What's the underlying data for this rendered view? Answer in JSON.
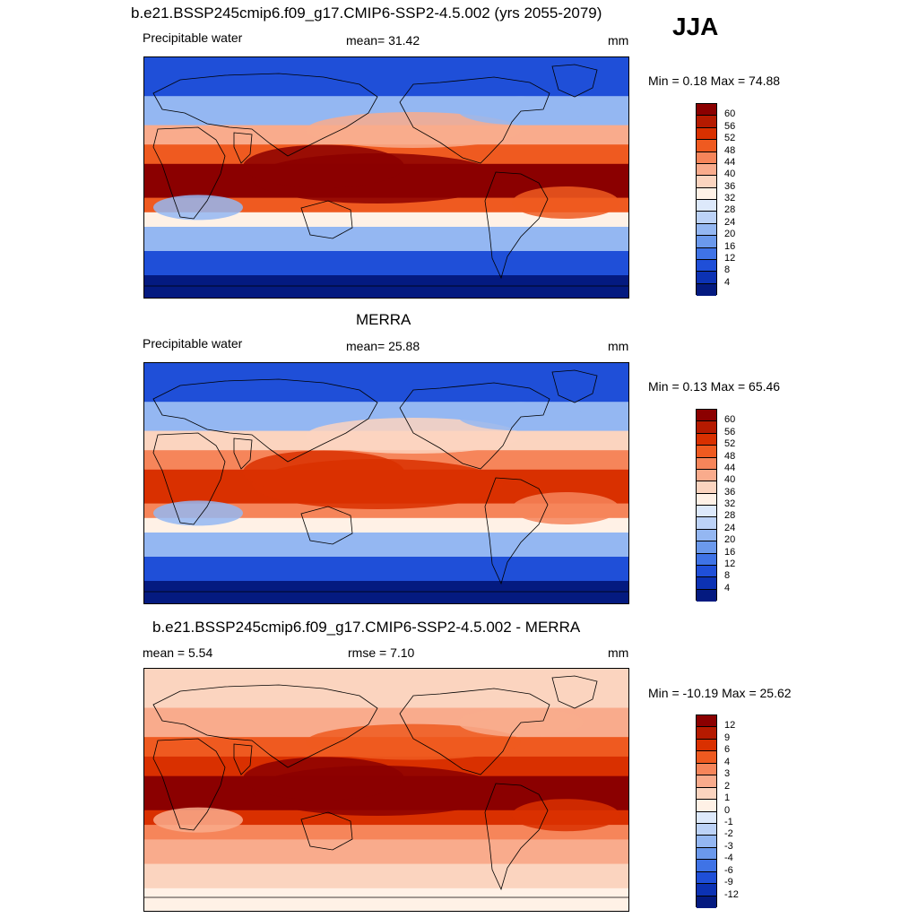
{
  "season": "JJA",
  "panels": [
    {
      "title": "b.e21.BSSP245cmip6.f09_g17.CMIP6-SSP2-4.5.002 (yrs 2055-2079)",
      "left_label": "Precipitable water",
      "center_label": "mean=  31.42",
      "units": "mm",
      "minmax": "Min =   0.18 Max =  74.88",
      "colorbar": {
        "labels": [
          "60",
          "56",
          "52",
          "48",
          "44",
          "40",
          "36",
          "32",
          "28",
          "24",
          "20",
          "16",
          "12",
          "8",
          "4"
        ],
        "colors": [
          "#8b0000",
          "#b51a00",
          "#d93000",
          "#ef5a20",
          "#f6855a",
          "#f9ab8c",
          "#fbd4bf",
          "#fff1e6",
          "#dde9fb",
          "#bcd2f7",
          "#94b7f2",
          "#6b99ec",
          "#3f73e6",
          "#1f4fd8",
          "#0c32b4",
          "#041a80"
        ]
      },
      "colors": {
        "high": "#8b0000",
        "mid": "#ef5a20",
        "low": "#f9ab8c",
        "neutral": "#fff1e6",
        "cool": "#94b7f2",
        "cold": "#1f4fd8",
        "polar": "#041a80"
      }
    },
    {
      "title": "MERRA",
      "left_label": "Precipitable water",
      "center_label": "mean=  25.88",
      "units": "mm",
      "minmax": "Min =   0.13 Max =  65.46",
      "colorbar": {
        "labels": [
          "60",
          "56",
          "52",
          "48",
          "44",
          "40",
          "36",
          "32",
          "28",
          "24",
          "20",
          "16",
          "12",
          "8",
          "4"
        ],
        "colors": [
          "#8b0000",
          "#b51a00",
          "#d93000",
          "#ef5a20",
          "#f6855a",
          "#f9ab8c",
          "#fbd4bf",
          "#fff1e6",
          "#dde9fb",
          "#bcd2f7",
          "#94b7f2",
          "#6b99ec",
          "#3f73e6",
          "#1f4fd8",
          "#0c32b4",
          "#041a80"
        ]
      },
      "colors": {
        "high": "#d93000",
        "mid": "#f6855a",
        "low": "#fbd4bf",
        "neutral": "#fff1e6",
        "cool": "#94b7f2",
        "cold": "#1f4fd8",
        "polar": "#041a80"
      }
    },
    {
      "title": "b.e21.BSSP245cmip6.f09_g17.CMIP6-SSP2-4.5.002 - MERRA",
      "left_label": "mean =   5.54",
      "center_label": "rmse =   7.10",
      "units": "mm",
      "minmax": "Min = -10.19 Max =  25.62",
      "colorbar": {
        "labels": [
          "12",
          "9",
          "6",
          "4",
          "3",
          "2",
          "1",
          "0",
          "-1",
          "-2",
          "-3",
          "-4",
          "-6",
          "-9",
          "-12"
        ],
        "colors": [
          "#8b0000",
          "#b51a00",
          "#d93000",
          "#ef5a20",
          "#f6855a",
          "#f9ab8c",
          "#fbd4bf",
          "#fff1e6",
          "#dde9fb",
          "#bcd2f7",
          "#94b7f2",
          "#6b99ec",
          "#3f73e6",
          "#1f4fd8",
          "#0c32b4",
          "#041a80"
        ]
      },
      "colors": {
        "high": "#8b0000",
        "mid": "#d93000",
        "low": "#ef5a20",
        "neutral": "#f6855a",
        "cool": "#f9ab8c",
        "cold": "#fbd4bf",
        "polar": "#fff1e6"
      }
    }
  ]
}
